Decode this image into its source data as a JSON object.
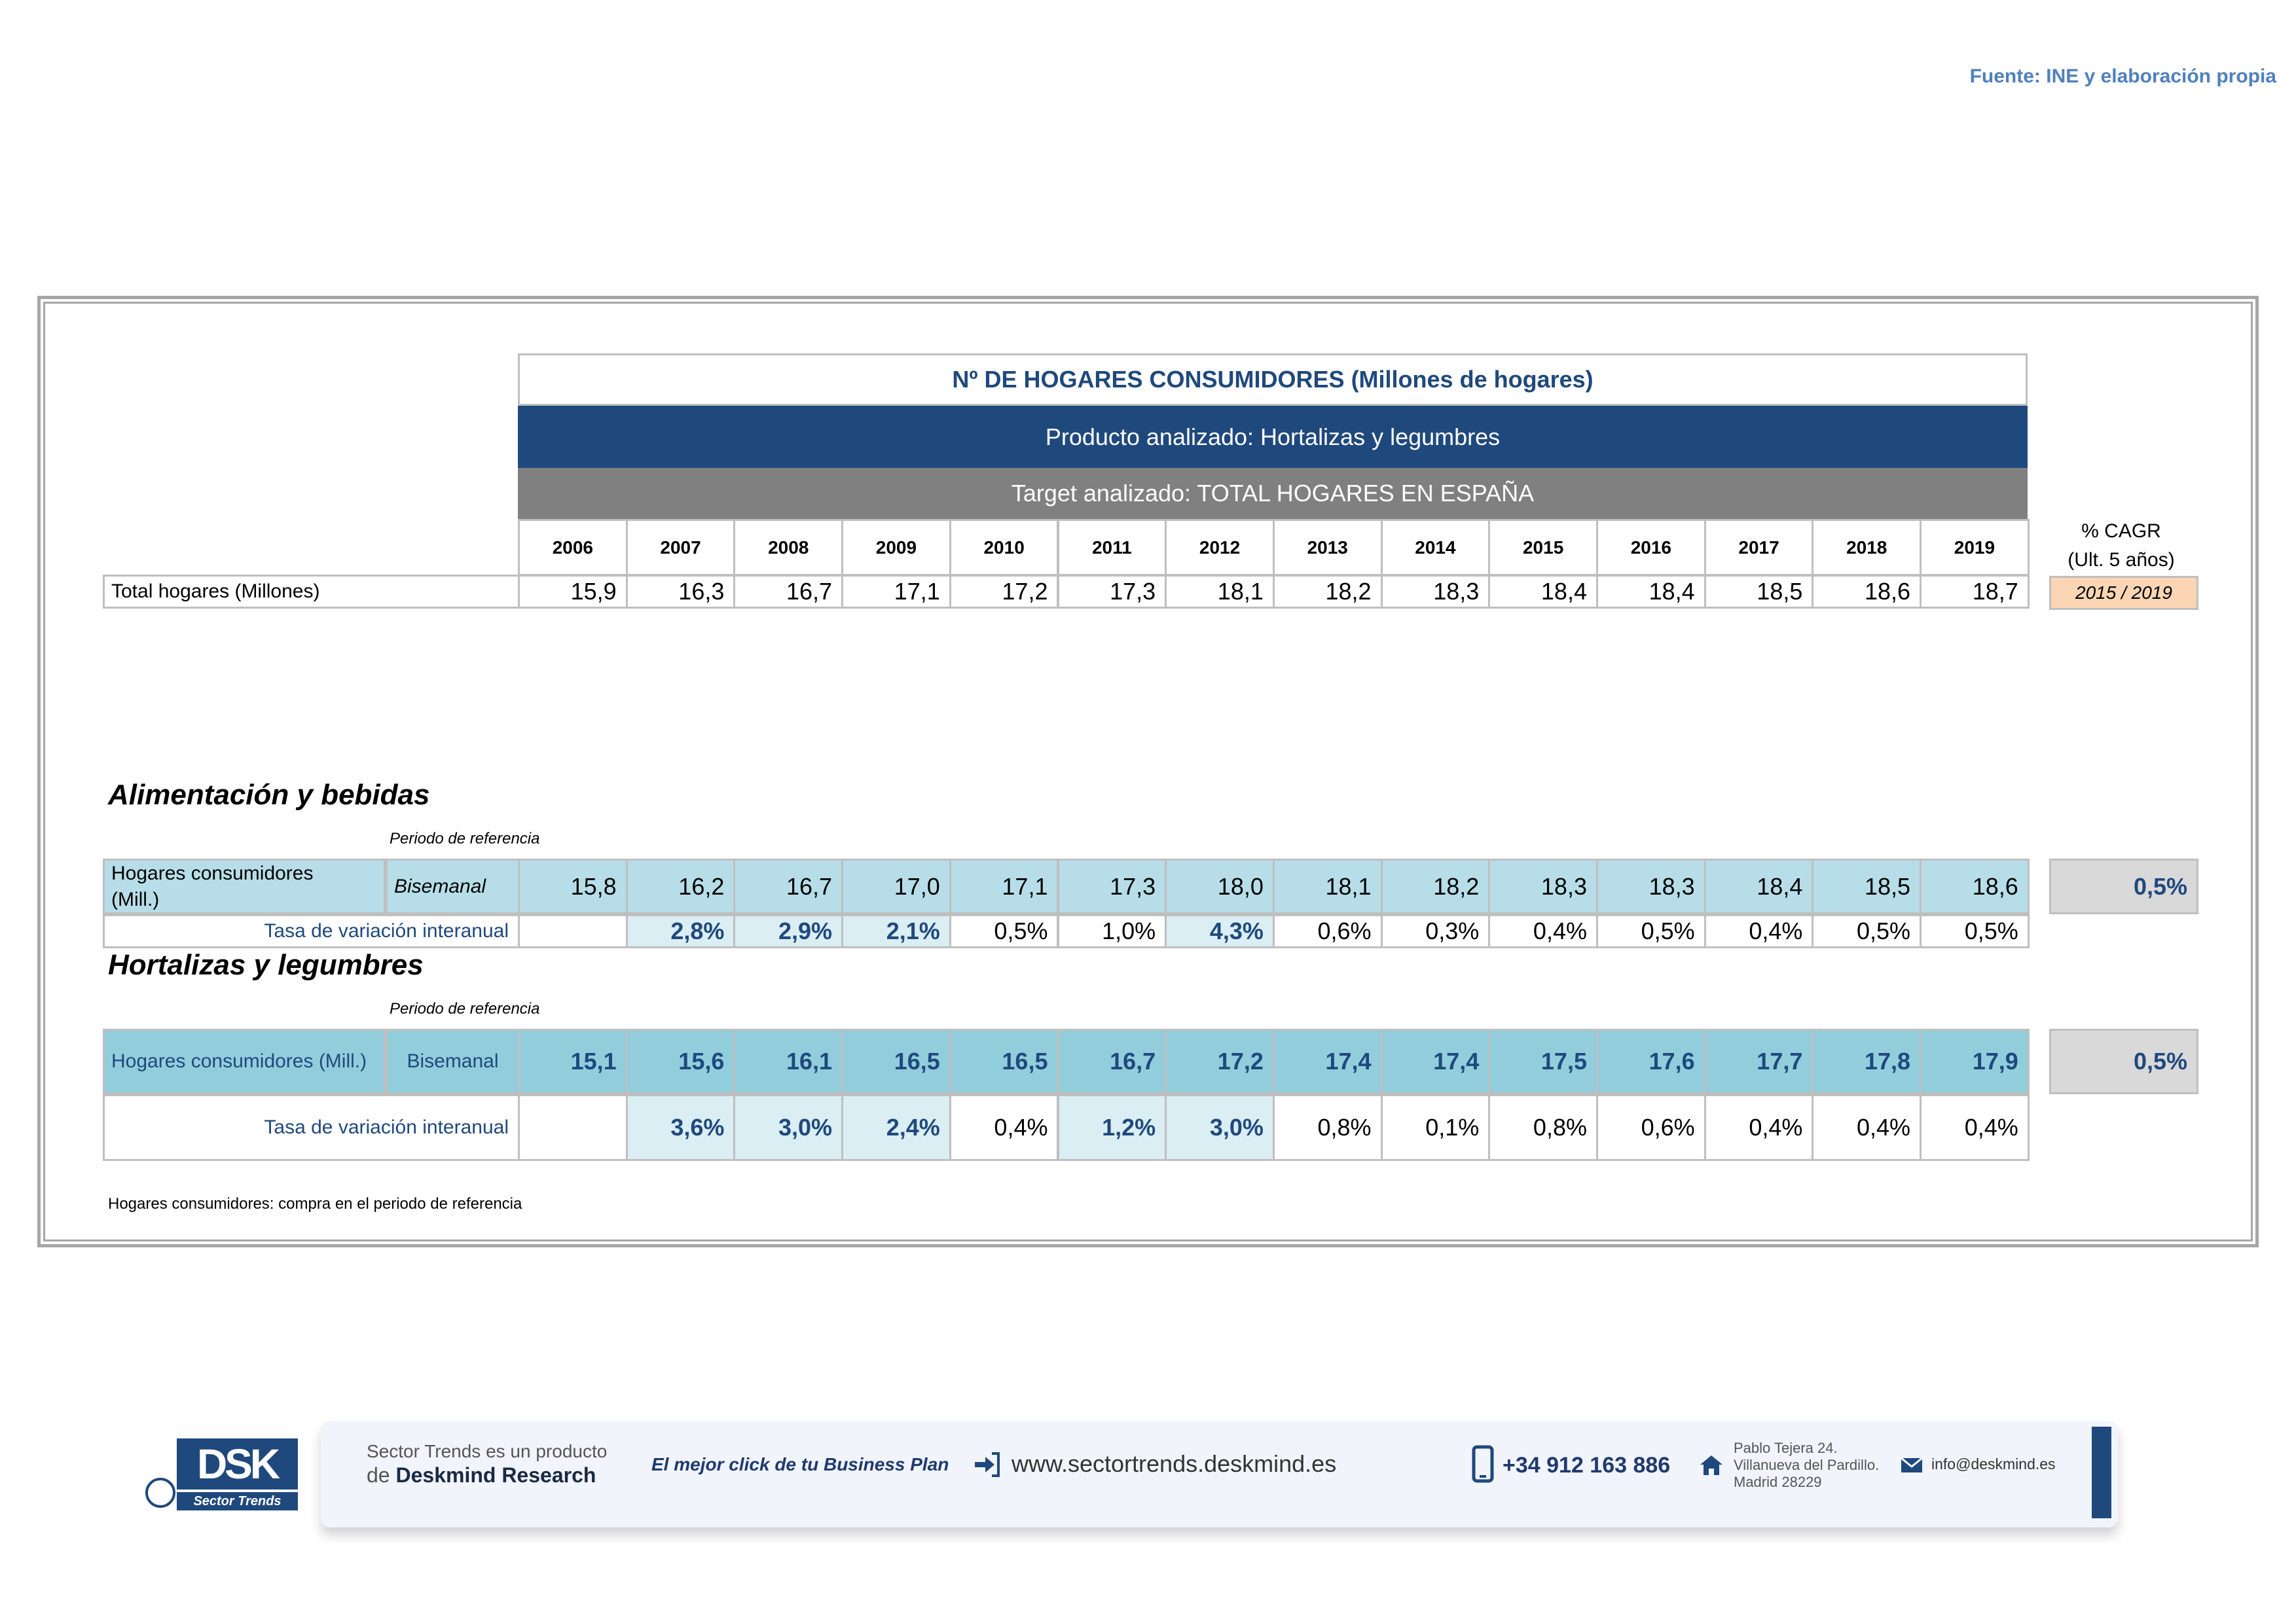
{
  "source": "Fuente: INE y elaboración propia",
  "table1": {
    "title": "Nº DE HOGARES CONSUMIDORES (Millones de hogares)",
    "product": "Producto analizado: Hortalizas y legumbres",
    "target": "Target analizado: TOTAL HOGARES EN ESPAÑA",
    "years": [
      "2006",
      "2007",
      "2008",
      "2009",
      "2010",
      "2011",
      "2012",
      "2013",
      "2014",
      "2015",
      "2016",
      "2017",
      "2018",
      "2019"
    ],
    "cagr_header_1": "% CAGR",
    "cagr_header_2": "(Ult. 5 años)",
    "cagr_period": "2015 / 2019",
    "total_label": "Total hogares (Millones)",
    "total_values": [
      "15,9",
      "16,3",
      "16,7",
      "17,1",
      "17,2",
      "17,3",
      "18,1",
      "18,2",
      "18,3",
      "18,4",
      "18,4",
      "18,5",
      "18,6",
      "18,7"
    ]
  },
  "section1": {
    "title": "Alimentación y bebidas",
    "ref_label": "Periodo de referencia",
    "row_label_1": "Hogares consumidores",
    "row_label_2": "(Mill.)",
    "period": "Bisemanal",
    "values": [
      "15,8",
      "16,2",
      "16,7",
      "17,0",
      "17,1",
      "17,3",
      "18,0",
      "18,1",
      "18,2",
      "18,3",
      "18,3",
      "18,4",
      "18,5",
      "18,6"
    ],
    "cagr": "0,5%",
    "rate_label": "Tasa de variación interanual",
    "rates": [
      "",
      "2,8%",
      "2,9%",
      "2,1%",
      "0,5%",
      "1,0%",
      "4,3%",
      "0,6%",
      "0,3%",
      "0,4%",
      "0,5%",
      "0,4%",
      "0,5%",
      "0,5%"
    ]
  },
  "section2": {
    "title": "Hortalizas y legumbres",
    "ref_label": "Periodo de referencia",
    "row_label": "Hogares consumidores (Mill.)",
    "period": "Bisemanal",
    "values": [
      "15,1",
      "15,6",
      "16,1",
      "16,5",
      "16,5",
      "16,7",
      "17,2",
      "17,4",
      "17,4",
      "17,5",
      "17,6",
      "17,7",
      "17,8",
      "17,9"
    ],
    "cagr": "0,5%",
    "rate_label": "Tasa de variación interanual",
    "rates": [
      "",
      "3,6%",
      "3,0%",
      "2,4%",
      "0,4%",
      "1,2%",
      "3,0%",
      "0,8%",
      "0,1%",
      "0,8%",
      "0,6%",
      "0,4%",
      "0,4%",
      "0,4%"
    ]
  },
  "footnote": "Hogares consumidores: compra en el periodo de referencia",
  "footer": {
    "logo_text": "DSK",
    "logo_sub": "Sector Trends",
    "product_line_1": "Sector Trends es un producto",
    "product_line_2_prefix": "de ",
    "product_line_2_brand": "Deskmind Research",
    "slogan": "El mejor click de tu Business Plan",
    "website": "www.sectortrends.deskmind.es",
    "phone": "+34 912 163 886",
    "address_1": "Pablo Tejera 24.",
    "address_2": "Villanueva del Pardillo.",
    "address_3": "Madrid 28229",
    "email": "info@deskmind.es",
    "icons": [
      "arrow-login-icon",
      "phone-icon",
      "home-icon",
      "envelope-icon"
    ]
  }
}
